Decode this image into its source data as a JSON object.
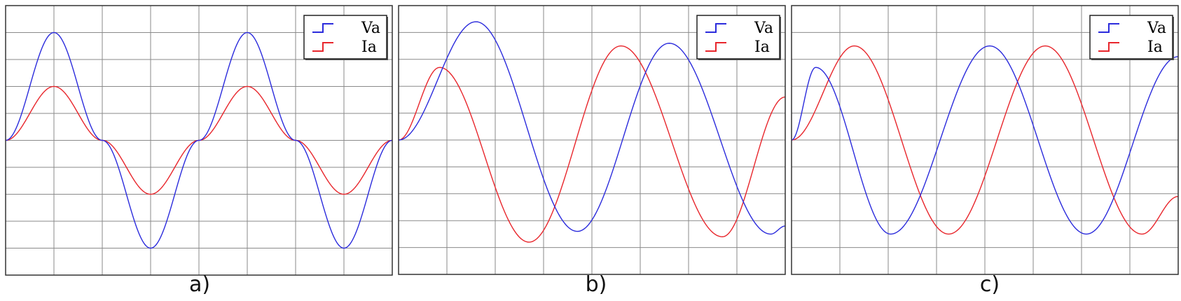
{
  "colors": {
    "Va": "#2b2bdc",
    "Ia": "#e8262c",
    "grid": "#8a8a8a",
    "frame": "#333333"
  },
  "chart_data": [
    {
      "type": "line",
      "panel_label": "a)",
      "legend": {
        "position": "top-right",
        "entries": [
          "Va",
          "Ia"
        ]
      },
      "grid": true,
      "xlim": [
        0,
        8
      ],
      "ylim": [
        -5,
        5
      ],
      "series": [
        {
          "name": "Va",
          "amplitude": 4,
          "period": 4,
          "phase_deg": 0,
          "x": [
            0,
            1,
            2,
            3,
            4,
            5,
            6,
            7,
            8
          ],
          "y": [
            0,
            4,
            0,
            -4,
            0,
            4,
            0,
            -4,
            0
          ]
        },
        {
          "name": "Ia",
          "amplitude": 2,
          "period": 4,
          "phase_deg": 0,
          "x": [
            0,
            1,
            2,
            3,
            4,
            5,
            6,
            7,
            8
          ],
          "y": [
            0,
            2,
            0,
            -2,
            0,
            2,
            0,
            -2,
            0
          ]
        }
      ]
    },
    {
      "type": "line",
      "panel_label": "b)",
      "legend": {
        "position": "top-right",
        "entries": [
          "Va",
          "Ia"
        ]
      },
      "grid": true,
      "xlim": [
        0,
        8
      ],
      "ylim": [
        -5,
        5
      ],
      "series": [
        {
          "name": "Va",
          "transient": true,
          "x": [
            0,
            1.6,
            3.7,
            5.6,
            7.7,
            8
          ],
          "y": [
            0,
            4.4,
            -3.4,
            3.6,
            -3.5,
            -3.2
          ]
        },
        {
          "name": "Ia",
          "transient": true,
          "x": [
            0,
            0.85,
            2.7,
            4.6,
            6.7,
            8
          ],
          "y": [
            0,
            2.7,
            -3.8,
            3.5,
            -3.6,
            1.6
          ]
        }
      ]
    },
    {
      "type": "line",
      "panel_label": "c)",
      "legend": {
        "position": "top-right",
        "entries": [
          "Va",
          "Ia"
        ]
      },
      "grid": true,
      "xlim": [
        0,
        8
      ],
      "ylim": [
        -5,
        5
      ],
      "series": [
        {
          "name": "Va",
          "transient": true,
          "x": [
            0,
            0.5,
            2.05,
            4.1,
            6.1,
            8
          ],
          "y": [
            0,
            2.7,
            -3.5,
            3.5,
            -3.5,
            3.1
          ]
        },
        {
          "name": "Ia",
          "transient": true,
          "x": [
            0,
            1.3,
            3.25,
            5.25,
            7.25,
            8
          ],
          "y": [
            0,
            3.5,
            -3.5,
            3.5,
            -3.5,
            -2.1
          ]
        }
      ]
    }
  ]
}
